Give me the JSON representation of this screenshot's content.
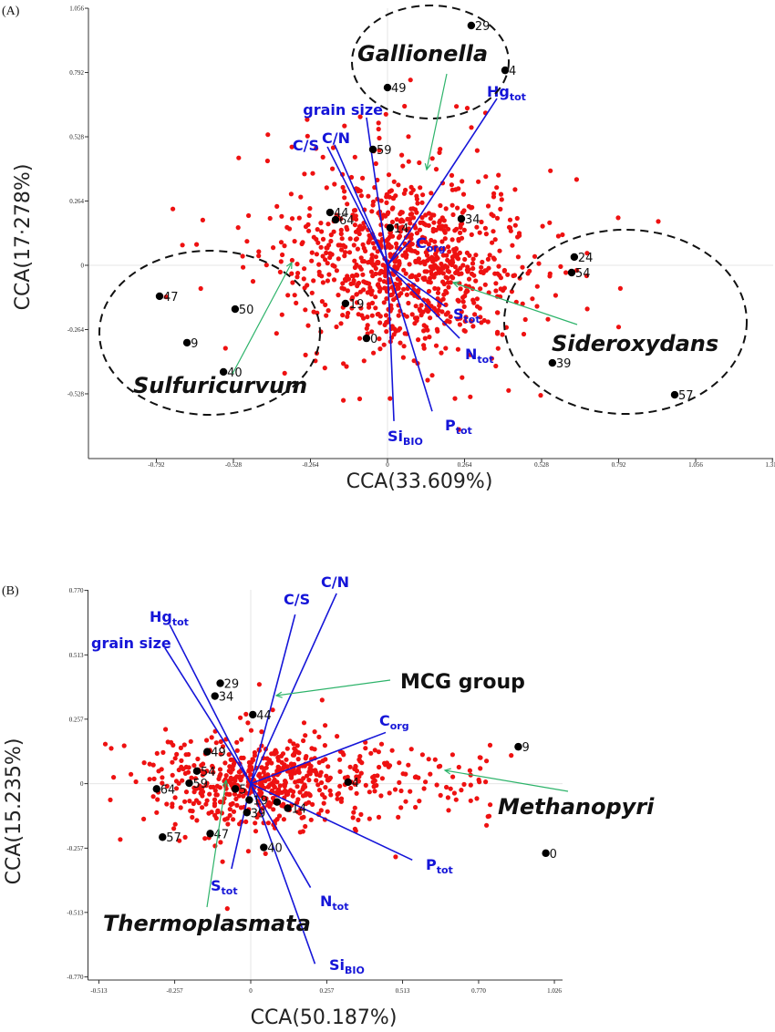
{
  "chart_data": [
    {
      "type": "scatter",
      "panel_label": "(A)",
      "xlabel": "CCA(33.609%)",
      "ylabel": "CCA(17·278%)",
      "x_ticks": [
        "-0.792",
        "-0.528",
        "-0.264",
        "0",
        "0.264",
        "0.528",
        "0.792",
        "1.056",
        "1.319"
      ],
      "y_ticks": [
        "-0.528",
        "-0.264",
        "0",
        "0.264",
        "0.528",
        "0.792",
        "1.056"
      ],
      "xlim": [
        -1.02,
        1.319
      ],
      "ylim": [
        -0.79,
        1.056
      ],
      "grid": false,
      "colors": {
        "species": "#ee1111",
        "sites": "#000000",
        "vectors": "#1515d8",
        "arrows": "#2db36a"
      },
      "sites": [
        {
          "label": "29",
          "x": 0.287,
          "y": 0.985
        },
        {
          "label": "4",
          "x": 0.403,
          "y": 0.801
        },
        {
          "label": "49",
          "x": 0.0,
          "y": 0.73
        },
        {
          "label": "59",
          "x": -0.05,
          "y": 0.476
        },
        {
          "label": "44",
          "x": -0.197,
          "y": 0.217
        },
        {
          "label": "64",
          "x": -0.178,
          "y": 0.187
        },
        {
          "label": "14",
          "x": 0.009,
          "y": 0.154
        },
        {
          "label": "34",
          "x": 0.253,
          "y": 0.191
        },
        {
          "label": "24",
          "x": 0.64,
          "y": 0.034
        },
        {
          "label": "54",
          "x": 0.631,
          "y": -0.03
        },
        {
          "label": "19",
          "x": -0.144,
          "y": -0.157
        },
        {
          "label": "0",
          "x": -0.072,
          "y": -0.3
        },
        {
          "label": "47",
          "x": -0.781,
          "y": -0.127
        },
        {
          "label": "50",
          "x": -0.522,
          "y": -0.18
        },
        {
          "label": "9",
          "x": -0.687,
          "y": -0.318
        },
        {
          "label": "40",
          "x": -0.562,
          "y": -0.438
        },
        {
          "label": "39",
          "x": 0.565,
          "y": -0.401
        },
        {
          "label": "57",
          "x": 0.984,
          "y": -0.532
        }
      ],
      "vectors": [
        {
          "label": "Hg",
          "sub": "tot",
          "x": 0.375,
          "y": 0.685
        },
        {
          "label": "grain size",
          "sub": "",
          "x": -0.072,
          "y": 0.607
        },
        {
          "label": "C/S",
          "sub": "",
          "x": -0.206,
          "y": 0.487
        },
        {
          "label": "C/N",
          "sub": "",
          "x": -0.181,
          "y": 0.495
        },
        {
          "label": "C",
          "sub": "org",
          "x": 0.078,
          "y": 0.101
        },
        {
          "label": "S",
          "sub": "tot",
          "x": 0.197,
          "y": -0.168
        },
        {
          "label": "N",
          "sub": "tot",
          "x": 0.247,
          "y": -0.3
        },
        {
          "label": "P",
          "sub": "tot",
          "x": 0.153,
          "y": -0.6
        },
        {
          "label": "Si",
          "sub": "BIO",
          "x": 0.022,
          "y": -0.64
        }
      ],
      "groups": [
        "Gallionella",
        "Sideroxydans",
        "Sulfuricurvum"
      ]
    },
    {
      "type": "scatter",
      "panel_label": "(B)",
      "xlabel": "CCA(50.187%)",
      "ylabel": "CCA(15.235%)",
      "x_ticks": [
        "-0.513",
        "-0.257",
        "0",
        "0.257",
        "0.513",
        "0.770",
        "1.026"
      ],
      "y_ticks": [
        "-0.770",
        "-0.513",
        "-0.257",
        "0",
        "0.257",
        "0.513",
        "0.770"
      ],
      "xlim": [
        -0.55,
        1.026
      ],
      "ylim": [
        -0.784,
        0.77
      ],
      "grid": false,
      "colors": {
        "species": "#ee1111",
        "sites": "#000000",
        "vectors": "#1515d8",
        "arrows": "#2db36a"
      },
      "sites": [
        {
          "label": "29",
          "x": -0.103,
          "y": 0.4
        },
        {
          "label": "34",
          "x": -0.121,
          "y": 0.349
        },
        {
          "label": "44",
          "x": 0.007,
          "y": 0.275
        },
        {
          "label": "49",
          "x": -0.147,
          "y": 0.127
        },
        {
          "label": "54",
          "x": -0.182,
          "y": 0.05
        },
        {
          "label": "59",
          "x": -0.208,
          "y": 0.002
        },
        {
          "label": "64",
          "x": -0.318,
          "y": -0.021
        },
        {
          "label": "5",
          "x": -0.052,
          "y": -0.021
        },
        {
          "label": "19",
          "x": -0.005,
          "y": -0.065
        },
        {
          "label": "",
          "x": 0.089,
          "y": -0.073
        },
        {
          "label": "39",
          "x": -0.013,
          "y": -0.115
        },
        {
          "label": "14",
          "x": 0.125,
          "y": -0.098
        },
        {
          "label": "57",
          "x": -0.298,
          "y": -0.213
        },
        {
          "label": "47",
          "x": -0.137,
          "y": -0.199
        },
        {
          "label": "40",
          "x": 0.044,
          "y": -0.254
        },
        {
          "label": "4",
          "x": 0.329,
          "y": 0.006
        },
        {
          "label": "9",
          "x": 0.904,
          "y": 0.147
        },
        {
          "label": "0",
          "x": 0.997,
          "y": -0.277
        }
      ],
      "vectors": [
        {
          "label": "Hg",
          "sub": "tot",
          "x": -0.274,
          "y": 0.634
        },
        {
          "label": "grain size",
          "sub": "",
          "x": -0.29,
          "y": 0.541
        },
        {
          "label": "C/S",
          "sub": "",
          "x": 0.15,
          "y": 0.674
        },
        {
          "label": "C/N",
          "sub": "",
          "x": 0.29,
          "y": 0.758
        },
        {
          "label": "C",
          "sub": "org",
          "x": 0.456,
          "y": 0.204
        },
        {
          "label": "P",
          "sub": "tot",
          "x": 0.546,
          "y": -0.304
        },
        {
          "label": "N",
          "sub": "tot",
          "x": 0.202,
          "y": -0.414
        },
        {
          "label": "Si",
          "sub": "BIO",
          "x": 0.217,
          "y": -0.718
        },
        {
          "label": "S",
          "sub": "tot",
          "x": -0.065,
          "y": -0.339
        }
      ],
      "groups": [
        "MCG group",
        "Methanopyri",
        "Thermoplasmata"
      ]
    }
  ]
}
